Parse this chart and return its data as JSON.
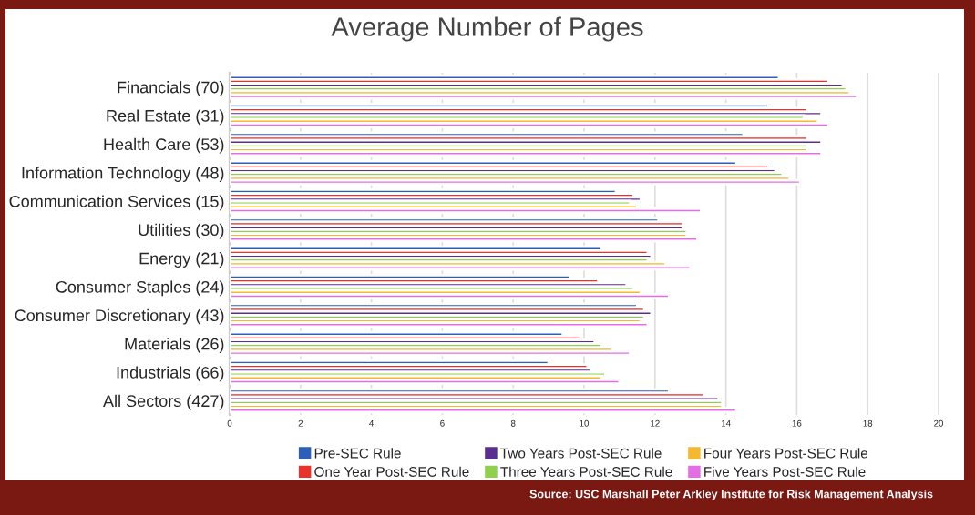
{
  "chart_data": {
    "type": "bar",
    "orientation": "horizontal",
    "title": "Average Number of Pages",
    "categories": [
      "Financials (70)",
      "Real Estate (31)",
      "Health Care (53)",
      "Information Technology (48)",
      "Communication Services (15)",
      "Utilities (30)",
      "Energy (21)",
      "Consumer Staples (24)",
      "Consumer Discretionary (43)",
      "Materials (26)",
      "Industrials (66)",
      "All Sectors (427)"
    ],
    "series": [
      {
        "name": "Pre-SEC Rule",
        "color": "#2e5fb8",
        "values": [
          15.5,
          15.2,
          14.5,
          14.3,
          10.9,
          12.1,
          10.5,
          9.6,
          11.5,
          9.4,
          9.0,
          12.4
        ]
      },
      {
        "name": "One Year Post-SEC Rule",
        "color": "#e8322b",
        "values": [
          16.9,
          16.3,
          16.3,
          15.2,
          11.4,
          12.8,
          11.8,
          10.4,
          11.7,
          9.9,
          10.1,
          13.4
        ]
      },
      {
        "name": "Two Years Post-SEC Rule",
        "color": "#5b2d90",
        "values": [
          17.3,
          16.7,
          16.7,
          15.4,
          11.6,
          12.8,
          11.9,
          11.2,
          11.9,
          10.3,
          10.2,
          13.8
        ]
      },
      {
        "name": "Three Years Post-SEC Rule",
        "color": "#8fd14f",
        "values": [
          17.4,
          16.2,
          16.3,
          15.6,
          11.3,
          12.9,
          11.8,
          11.4,
          11.7,
          10.5,
          10.6,
          13.9
        ]
      },
      {
        "name": "Four Years Post-SEC Rule",
        "color": "#f5b82e",
        "values": [
          17.5,
          16.6,
          16.3,
          15.8,
          11.5,
          12.9,
          12.3,
          11.6,
          11.6,
          10.8,
          10.5,
          13.9
        ]
      },
      {
        "name": "Five Years Post-SEC Rule",
        "color": "#e46ee6",
        "values": [
          17.7,
          16.9,
          16.7,
          16.1,
          13.3,
          13.2,
          13.0,
          12.4,
          11.8,
          11.3,
          11.0,
          14.3
        ]
      }
    ],
    "xlim": [
      0,
      20
    ],
    "xticks": [
      0,
      2,
      4,
      6,
      8,
      10,
      12,
      14,
      16,
      18,
      20
    ],
    "grid": "x",
    "legend": "bottom",
    "annotations": [
      "Source: USC Marshall Peter Arkley Institute for Risk Management Analysis"
    ]
  }
}
